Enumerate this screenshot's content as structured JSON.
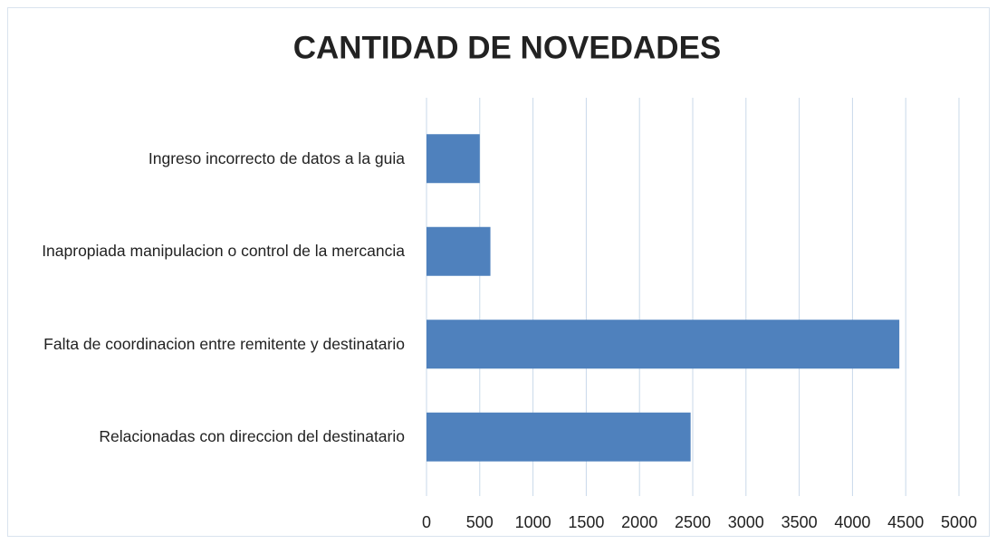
{
  "chart_data": {
    "type": "hbar",
    "title": "CANTIDAD DE NOVEDADES",
    "categories": [
      "Ingreso incorrecto de datos a la guia",
      "Inapropiada manipulacion o control de la mercancia",
      "Falta de coordinacion entre remitente y destinatario",
      "Relacionadas con direccion del destinatario"
    ],
    "values": [
      500,
      600,
      4440,
      2480
    ],
    "color": "#4f81bd",
    "xlim": [
      0,
      5000
    ],
    "xticks": [
      0,
      500,
      1000,
      1500,
      2000,
      2500,
      3000,
      3500,
      4000,
      4500,
      5000
    ],
    "grid": true
  }
}
